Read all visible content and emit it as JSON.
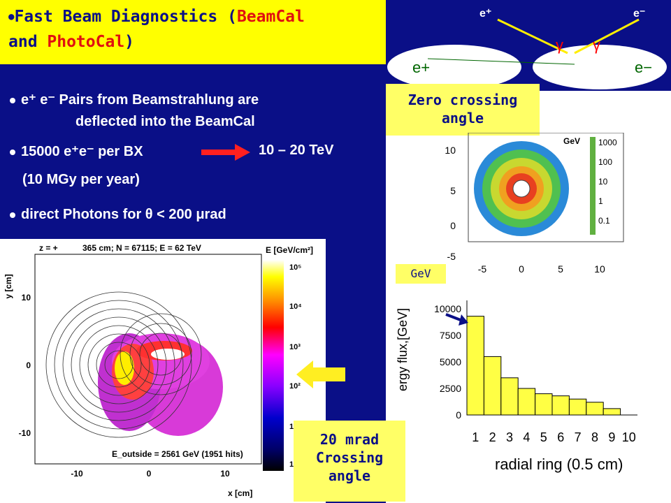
{
  "title": {
    "prefix": "Fast Beam Diagnostics (",
    "beamcal": "BeamCal",
    "mid": "and ",
    "photocal": "PhotoCal",
    "suffix": ")"
  },
  "bullets": {
    "b1_line1": "e⁺ e⁻ Pairs from Beamstrahlung are",
    "b1_line2": "deflected into the BeamCal",
    "b2_left": "15000 e⁺e⁻ per BX",
    "b2_right": "10 – 20 TeV",
    "b2_sub": "(10 MGy per year)",
    "b3": "direct Photons for θ < 200 μrad"
  },
  "colors": {
    "navy": "#0a0f87",
    "yellow": "#ffff00",
    "red": "#e01010",
    "light_yellow": "#ffff66",
    "hist_fill": "#ffff44"
  },
  "diagram": {
    "eplus_top": "e⁺",
    "eminus_top": "e⁻",
    "gamma": "γ",
    "eplus": "e+",
    "eminus": "e−"
  },
  "labels": {
    "zero_crossing": "Zero crossing angle",
    "gev": "GeV",
    "crossing_20": "20 mrad Crossing angle"
  },
  "left_plot": {
    "header_z": "z = +",
    "header_rest": "365 cm; N = 67115; E = 62 TeV",
    "e_label": "E [GeV/cm²]",
    "y_label": "y [cm]",
    "x_label": "x [cm]",
    "outside": "E_outside = 2561 GeV (1951 hits)",
    "x_ticks": [
      "-10",
      "0",
      "10"
    ],
    "y_ticks": [
      "10",
      "0",
      "-10"
    ],
    "color_ticks": [
      "10⁵",
      "10⁴",
      "10³",
      "10²",
      "1",
      "1"
    ]
  },
  "beamcal_plot": {
    "gev": "GeV",
    "scale": [
      "1000",
      "100",
      "10",
      "1",
      "0.1"
    ],
    "y_ticks": [
      "10",
      "5",
      "0",
      "-5"
    ],
    "x_ticks": [
      "-5",
      "0",
      "5",
      "10"
    ]
  },
  "chart_data": {
    "type": "bar",
    "title": "",
    "xlabel": "radial ring (0.5 cm)",
    "ylabel": "ergy flux,[GeV]",
    "categories": [
      "1",
      "2",
      "3",
      "4",
      "5",
      "6",
      "7",
      "8",
      "9",
      "10"
    ],
    "values": [
      9300,
      5500,
      3500,
      2500,
      2000,
      1800,
      1500,
      1200,
      600,
      0
    ],
    "y_ticks": [
      "10000",
      "7500",
      "5000",
      "2500",
      "0"
    ],
    "ylim": [
      0,
      10000
    ]
  }
}
